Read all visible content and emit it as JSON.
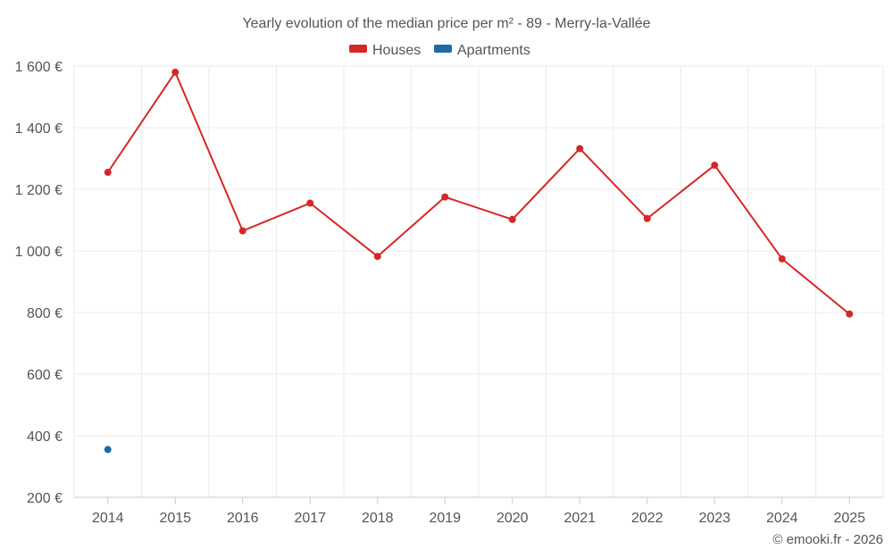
{
  "chart_data": {
    "type": "line",
    "title": "Yearly evolution of the median price per m² - 89 - Merry-la-Vallée",
    "categories": [
      "2014",
      "2015",
      "2016",
      "2017",
      "2018",
      "2019",
      "2020",
      "2021",
      "2022",
      "2023",
      "2024",
      "2025"
    ],
    "series": [
      {
        "name": "Houses",
        "color": "#d62728",
        "values": [
          1255,
          1580,
          1065,
          1155,
          982,
          1175,
          1102,
          1332,
          1105,
          1278,
          974,
          795
        ]
      },
      {
        "name": "Apartments",
        "color": "#1f6aa5",
        "values": [
          355,
          null,
          null,
          null,
          null,
          null,
          null,
          null,
          null,
          null,
          null,
          null
        ]
      }
    ],
    "yticks": [
      200,
      400,
      600,
      800,
      1000,
      1200,
      1400,
      1600
    ],
    "ytick_labels": [
      "200 €",
      "400 €",
      "600 €",
      "800 €",
      "1 000 €",
      "1 200 €",
      "1 400 €",
      "1 600 €"
    ],
    "ylim": [
      200,
      1600
    ],
    "xlabel": "",
    "ylabel": "",
    "grid": true,
    "legend_position": "top-center"
  },
  "credit": "© emooki.fr - 2026"
}
